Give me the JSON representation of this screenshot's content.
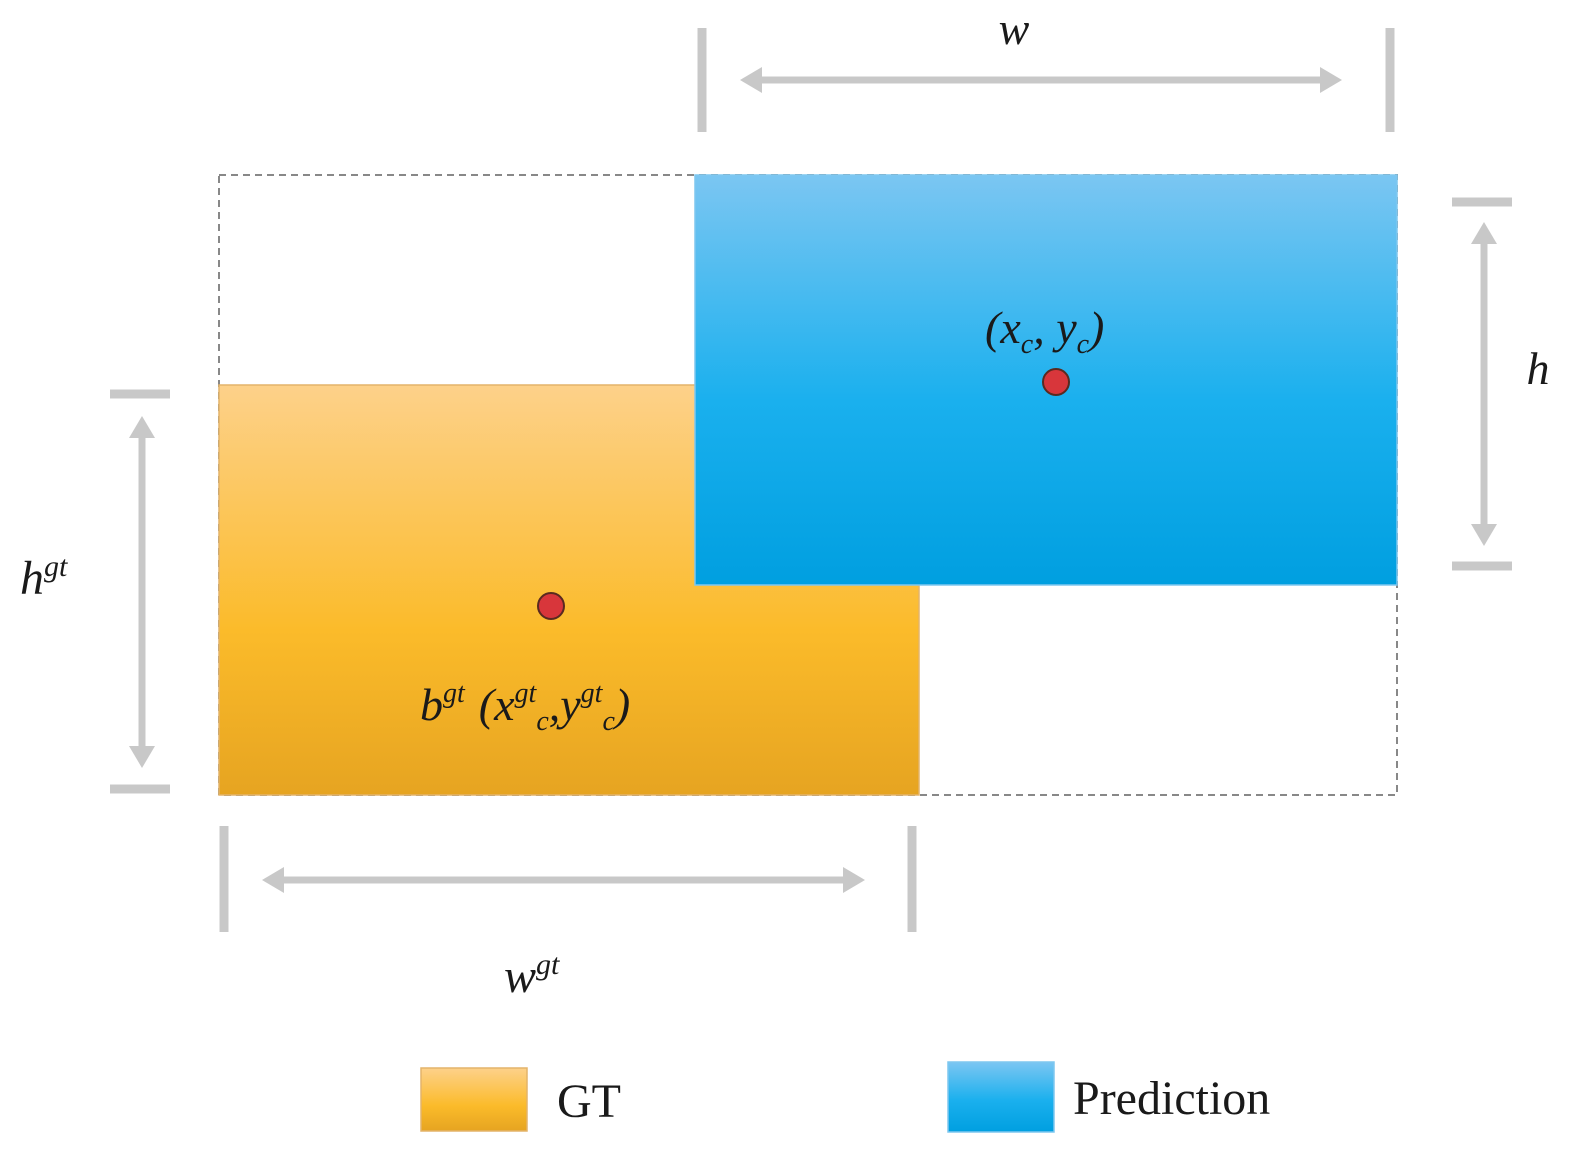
{
  "labels": {
    "w": "w",
    "h": "h",
    "h_gt_base": "h",
    "h_gt_sup": "gt",
    "w_gt_base": "w",
    "w_gt_sup": "gt",
    "pred_center": {
      "open": "(x",
      "x_sub": "c",
      "mid": ", y",
      "y_sub": "c",
      "close": ")"
    },
    "gt_center": {
      "b": "b",
      "b_sup": "gt",
      "open": "(x",
      "x_sup": "gt",
      "x_sub": "c",
      "mid": ",y",
      "y_sup": "gt",
      "y_sub": "c",
      "close": ")"
    }
  },
  "legend": {
    "gt_label": "GT",
    "prediction_label": "Prediction"
  },
  "colors": {
    "gt_top": "#fdd18a",
    "gt_bottom": "#e8a61c",
    "pred_top": "#7bc6f2",
    "pred_bottom": "#009fe0",
    "center_dot": "#d8363b",
    "dimension_gray": "#c8c8c8",
    "dashed_border": "#888888"
  }
}
